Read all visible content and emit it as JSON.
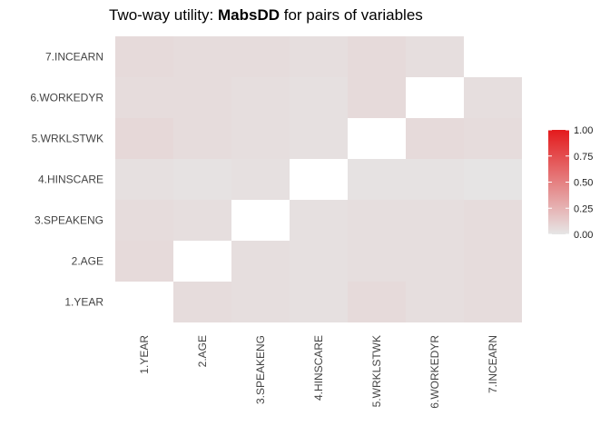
{
  "chart_data": {
    "type": "heatmap",
    "title": {
      "prefix": "Two-way utility: ",
      "bold": "MabsDD",
      "suffix": " for pairs of variables"
    },
    "xlabel": "",
    "ylabel": "",
    "x_categories": [
      "1.YEAR",
      "2.AGE",
      "3.SPEAKENG",
      "4.HINSCARE",
      "5.WRKLSTWK",
      "6.WORKEDYR",
      "7.INCEARN"
    ],
    "y_categories": [
      "1.YEAR",
      "2.AGE",
      "3.SPEAKENG",
      "4.HINSCARE",
      "5.WRKLSTWK",
      "6.WORKEDYR",
      "7.INCEARN"
    ],
    "values": [
      [
        null,
        0.05,
        0.04,
        0.03,
        0.06,
        0.04,
        0.05
      ],
      [
        0.06,
        null,
        0.04,
        0.03,
        0.04,
        0.04,
        0.05
      ],
      [
        0.05,
        0.04,
        null,
        0.03,
        0.04,
        0.04,
        0.05
      ],
      [
        0.03,
        0.02,
        0.03,
        null,
        0.02,
        0.02,
        0.01
      ],
      [
        0.07,
        0.05,
        0.04,
        0.03,
        null,
        0.06,
        0.05
      ],
      [
        0.05,
        0.05,
        0.04,
        0.03,
        0.06,
        null,
        0.04
      ],
      [
        0.06,
        0.05,
        0.05,
        0.04,
        0.06,
        0.04,
        null
      ]
    ],
    "colorbar": {
      "min": 0,
      "max": 1,
      "ticks": [
        0,
        0.25,
        0.5,
        0.75,
        1
      ],
      "tick_labels": [
        "0.00",
        "0.25",
        "0.50",
        "0.75",
        "1.00"
      ],
      "low_color": "#e6e6e6",
      "high_color": "#e41a1c"
    },
    "legend_position": "right",
    "grid": false
  }
}
